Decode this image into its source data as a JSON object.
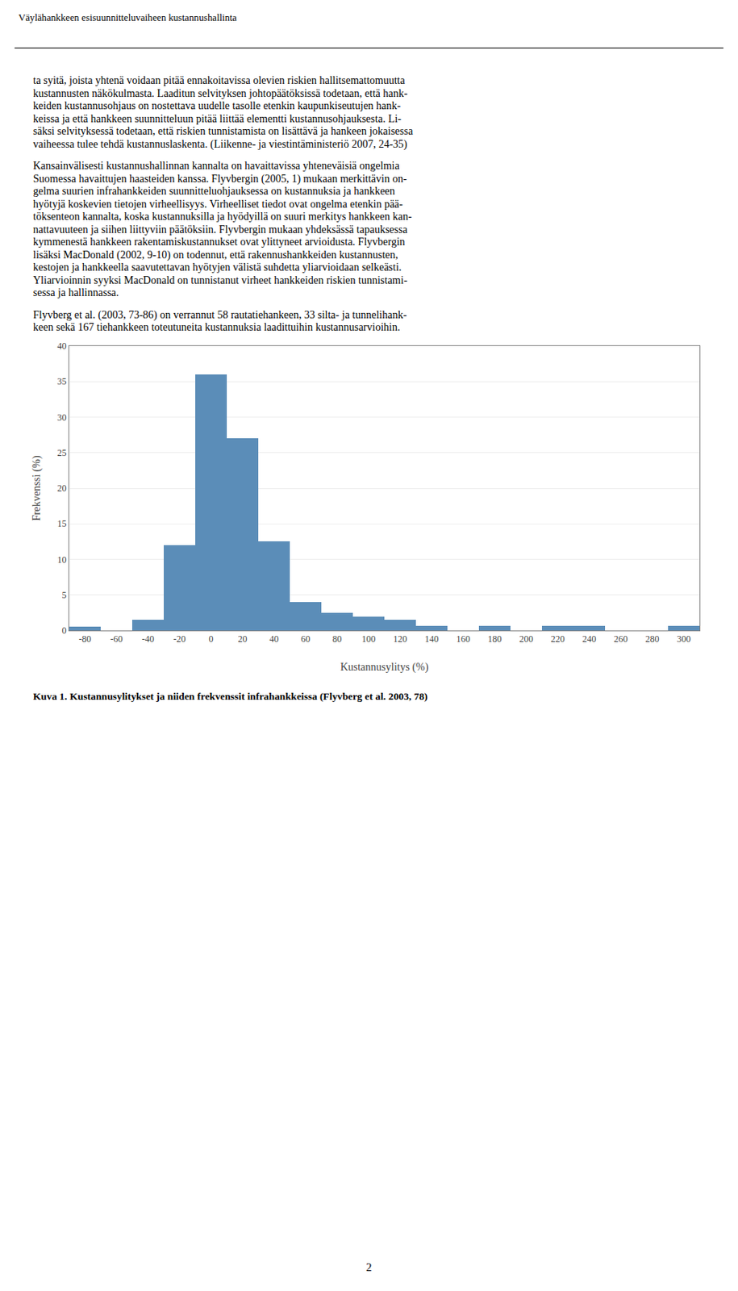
{
  "header": "Väylähankkeen esisuunnitteluvaiheen kustannushallinta",
  "text": [
    [
      "ta syitä, joista yhtenä voidaan pitää ennakoitavissa olevien riskien hallitsemattomuutta",
      "kustannusten näkökulmasta. Laaditun selvityksen johtopäätöksissä todetaan, että hank-",
      "keiden kustannusohjaus on nostettava uudelle tasolle etenkin kaupunkiseutujen hank-",
      "keissa ja että hankkeen suunnitteluun pitää liittää elementti kustannusohjauksesta. Li-",
      "säksi selvityksessä todetaan, että riskien tunnistamista on lisättävä ja hankeen jokaisessa",
      "vaiheessa tulee tehdä kustannuslaskenta. (Liikenne- ja viestintäministeriö 2007, 24-35)"
    ],
    [
      "Kansainvälisesti kustannushallinnan kannalta on havaittavissa yhteneväisiä ongelmia",
      "Suomessa havaittujen haasteiden kanssa. Flyvbergin (2005, 1) mukaan merkittävin on-",
      "gelma suurien infrahankkeiden suunnitteluohjauksessa on kustannuksia ja hankkeen",
      "hyötyjä koskevien tietojen virheellisyys. Virheelliset tiedot ovat ongelma etenkin pää-",
      "töksenteon kannalta, koska kustannuksilla ja hyödyillä on suuri merkitys hankkeen kan-",
      "nattavuuteen ja siihen liittyviin päätöksiin. Flyvbergin mukaan yhdeksässä tapauksessa",
      "kymmenestä hankkeen rakentamiskustannukset ovat ylittyneet arvioidusta. Flyvbergin",
      "lisäksi MacDonald (2002, 9-10) on todennut, että rakennushankkeiden kustannusten,",
      "kestojen ja hankkeella saavutettavan hyötyjen välistä suhdetta yliarvioidaan selkeästi.",
      "Yliarvioinnin syyksi MacDonald on tunnistanut virheet hankkeiden riskien tunnistami-",
      "sessa ja hallinnassa."
    ],
    [
      "Flyvberg et al. (2003, 73-86) on verrannut 58 rautatiehankeen, 33 silta- ja tunnelihank-",
      "keen sekä 167 tiehankkeen toteutuneita kustannuksia laadittuihin kustannusarvioihin."
    ]
  ],
  "caption": "Kuva 1. Kustannusylitykset ja niiden frekvenssit infrahankkeissa (Flyvberg et al. 2003, 78)",
  "page_number": "2",
  "chart_data": {
    "type": "bar",
    "x": [
      -80,
      -60,
      -40,
      -20,
      0,
      20,
      40,
      60,
      80,
      100,
      120,
      140,
      160,
      180,
      200,
      220,
      240,
      260,
      280,
      300
    ],
    "values": [
      0.5,
      0,
      1.5,
      12,
      36,
      27,
      12.5,
      4,
      2.5,
      2,
      1.5,
      0.7,
      0,
      0.7,
      0,
      0.7,
      0.7,
      0,
      0,
      0.7
    ],
    "color": "#5B8DB8",
    "xlabel": "Kustannusylitys (%)",
    "ylabel": "Frekvenssi (%)",
    "xlim": [
      -90,
      310
    ],
    "xticks": [
      -80,
      -60,
      -40,
      -20,
      0,
      20,
      40,
      60,
      80,
      100,
      120,
      140,
      160,
      180,
      200,
      220,
      240,
      260,
      280,
      300
    ],
    "ylim": [
      0,
      40
    ],
    "yticks": [
      0,
      5,
      10,
      15,
      20,
      25,
      30,
      35,
      40
    ],
    "grid": "y"
  }
}
